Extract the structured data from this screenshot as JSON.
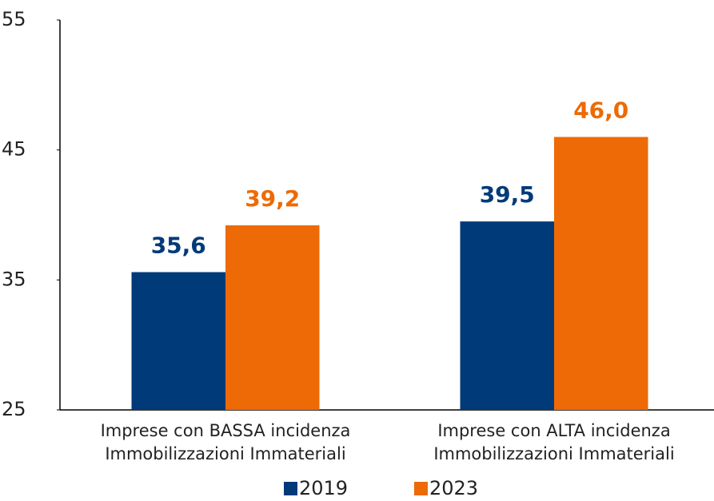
{
  "chart_data": {
    "type": "bar",
    "categories": [
      "Imprese con BASSA incidenza Immobilizzazioni Immateriali",
      "Imprese con ALTA incidenza Immobilizzazioni Immateriali"
    ],
    "series": [
      {
        "name": "2019",
        "color": "#003a78",
        "values": [
          35.6,
          39.5
        ],
        "value_labels": [
          "35,6",
          "39,5"
        ]
      },
      {
        "name": "2023",
        "color": "#ed6a06",
        "values": [
          39.2,
          46.0
        ],
        "value_labels": [
          "39,2",
          "46,0"
        ]
      }
    ],
    "ylim": [
      25,
      55
    ],
    "yticks": [
      25,
      35,
      45,
      55
    ],
    "grid": false,
    "legend": "bottom"
  }
}
